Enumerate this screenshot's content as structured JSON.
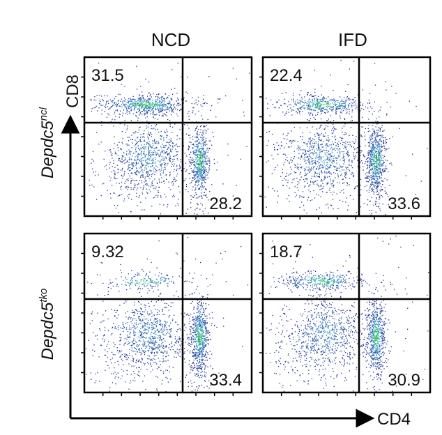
{
  "chart_data": {
    "type": "scatter",
    "title": "",
    "columns": [
      "NCD",
      "IFD"
    ],
    "rows": [
      {
        "base": "Depdc5",
        "superscript": "ncl"
      },
      {
        "base": "Depdc5",
        "superscript": "tko"
      }
    ],
    "xlabel": "CD4",
    "ylabel": "CD8",
    "panels": [
      {
        "row": 0,
        "col": 0,
        "upper_left_pct": "31.5",
        "lower_right_pct": "28.2",
        "upper_left_value": 31.5,
        "lower_right_value": 28.2
      },
      {
        "row": 0,
        "col": 1,
        "upper_left_pct": "22.4",
        "lower_right_pct": "33.6",
        "upper_left_value": 22.4,
        "lower_right_value": 33.6
      },
      {
        "row": 1,
        "col": 0,
        "upper_left_pct": "9.32",
        "lower_right_pct": "33.4",
        "upper_left_value": 9.32,
        "lower_right_value": 33.4
      },
      {
        "row": 1,
        "col": 1,
        "upper_left_pct": "18.7",
        "lower_right_pct": "30.9",
        "upper_left_value": 18.7,
        "lower_right_value": 30.9
      }
    ],
    "colors": {
      "density_low": "#1d2f8f",
      "density_mid": "#3aa0c8",
      "density_high": "#3ac25a",
      "gate": "#000000"
    },
    "grid": false,
    "legend": "none"
  }
}
